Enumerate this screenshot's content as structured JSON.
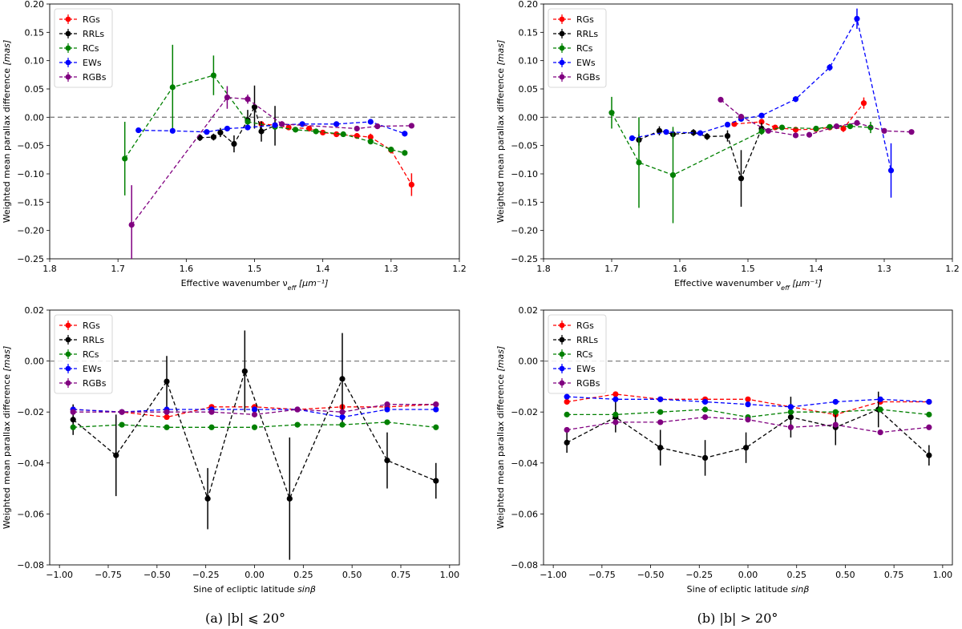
{
  "figure": {
    "captions": [
      "(a) |b| ⩽ 20°",
      "(b) |b| > 20°"
    ]
  },
  "series_meta": [
    {
      "name": "RGs",
      "color": "#ff0000"
    },
    {
      "name": "RRLs",
      "color": "#000000"
    },
    {
      "name": "RCs",
      "color": "#008000"
    },
    {
      "name": "EWs",
      "color": "#0000ff"
    },
    {
      "name": "RGBs",
      "color": "#800080"
    }
  ],
  "chart_data": [
    {
      "type": "line",
      "panel": "a-top",
      "xlabel": "Effective wavenumber ν_eff [μm⁻¹]",
      "ylabel": "Weighted mean parallax difference [mas]",
      "xlim": [
        1.8,
        1.2
      ],
      "ylim": [
        -0.25,
        0.2
      ],
      "xticks": [
        "1.8",
        "1.7",
        "1.6",
        "1.5",
        "1.4",
        "1.3",
        "1.2"
      ],
      "yticks": [
        "0.20",
        "0.15",
        "0.10",
        "0.05",
        "0.00",
        "−0.05",
        "−0.10",
        "−0.15",
        "−0.20",
        "−0.25"
      ],
      "hline": 0,
      "legend_position": "top-left",
      "series": [
        {
          "name": "RGs",
          "x": [
            1.49,
            1.47,
            1.45,
            1.42,
            1.4,
            1.38,
            1.35,
            1.33,
            1.3,
            1.27
          ],
          "y": [
            -0.012,
            -0.014,
            -0.018,
            -0.02,
            -0.027,
            -0.03,
            -0.033,
            -0.035,
            -0.058,
            -0.119
          ],
          "err": [
            0.004,
            0.004,
            0.004,
            0.004,
            0.004,
            0.005,
            0.005,
            0.006,
            0.006,
            0.02
          ]
        },
        {
          "name": "RRLs",
          "x": [
            1.58,
            1.56,
            1.55,
            1.53,
            1.51,
            1.5,
            1.49,
            1.47
          ],
          "y": [
            -0.036,
            -0.035,
            -0.027,
            -0.047,
            -0.005,
            0.018,
            -0.025,
            -0.015
          ],
          "err": [
            0.006,
            0.006,
            0.008,
            0.015,
            0.018,
            0.038,
            0.018,
            0.035
          ]
        },
        {
          "name": "RCs",
          "x": [
            1.69,
            1.62,
            1.56,
            1.51,
            1.47,
            1.44,
            1.41,
            1.37,
            1.33,
            1.3,
            1.28
          ],
          "y": [
            -0.073,
            0.053,
            0.074,
            -0.008,
            -0.017,
            -0.022,
            -0.025,
            -0.03,
            -0.043,
            -0.057,
            -0.063
          ],
          "err": [
            0.065,
            0.075,
            0.035,
            0.006,
            0.005,
            0.004,
            0.004,
            0.004,
            0.004,
            0.004,
            0.005
          ]
        },
        {
          "name": "EWs",
          "x": [
            1.67,
            1.62,
            1.57,
            1.54,
            1.51,
            1.47,
            1.43,
            1.38,
            1.33,
            1.28
          ],
          "y": [
            -0.023,
            -0.024,
            -0.026,
            -0.02,
            -0.018,
            -0.014,
            -0.012,
            -0.012,
            -0.008,
            -0.029
          ],
          "err": [
            0.004,
            0.004,
            0.004,
            0.004,
            0.004,
            0.003,
            0.003,
            0.003,
            0.003,
            0.005
          ]
        },
        {
          "name": "RGBs",
          "x": [
            1.68,
            1.54,
            1.51,
            1.46,
            1.35,
            1.32,
            1.27
          ],
          "y": [
            -0.19,
            0.035,
            0.032,
            -0.012,
            -0.02,
            -0.016,
            -0.015
          ],
          "err": [
            0.07,
            0.02,
            0.008,
            0.005,
            0.004,
            0.004,
            0.004
          ]
        }
      ]
    },
    {
      "type": "line",
      "panel": "b-top",
      "xlabel": "Effective wavenumber ν_eff [μm⁻¹]",
      "ylabel": "Weighted mean parallax difference [mas]",
      "xlim": [
        1.8,
        1.2
      ],
      "ylim": [
        -0.25,
        0.2
      ],
      "xticks": [
        "1.8",
        "1.7",
        "1.6",
        "1.5",
        "1.4",
        "1.3",
        "1.2"
      ],
      "yticks": [
        "0.20",
        "0.15",
        "0.10",
        "0.05",
        "0.00",
        "−0.05",
        "−0.10",
        "−0.15",
        "−0.20",
        "−0.25"
      ],
      "hline": 0,
      "legend_position": "top-left",
      "series": [
        {
          "name": "RGs",
          "x": [
            1.52,
            1.48,
            1.46,
            1.43,
            1.4,
            1.38,
            1.36,
            1.33
          ],
          "y": [
            -0.012,
            -0.008,
            -0.018,
            -0.022,
            -0.021,
            -0.018,
            -0.02,
            0.025
          ],
          "err": [
            0.004,
            0.005,
            0.004,
            0.004,
            0.004,
            0.004,
            0.006,
            0.01
          ]
        },
        {
          "name": "RRLs",
          "x": [
            1.66,
            1.63,
            1.61,
            1.58,
            1.56,
            1.53,
            1.51,
            1.48
          ],
          "y": [
            -0.04,
            -0.024,
            -0.03,
            -0.027,
            -0.034,
            -0.033,
            -0.108,
            -0.02
          ],
          "err": [
            0.01,
            0.008,
            0.008,
            0.006,
            0.006,
            0.01,
            0.05,
            0.01
          ]
        },
        {
          "name": "RCs",
          "x": [
            1.7,
            1.66,
            1.61,
            1.48,
            1.45,
            1.4,
            1.38,
            1.35,
            1.32
          ],
          "y": [
            0.008,
            -0.08,
            -0.102,
            -0.025,
            -0.018,
            -0.02,
            -0.017,
            -0.016,
            -0.018
          ],
          "err": [
            0.028,
            0.08,
            0.085,
            0.006,
            0.004,
            0.004,
            0.004,
            0.004,
            0.01
          ]
        },
        {
          "name": "EWs",
          "x": [
            1.67,
            1.62,
            1.57,
            1.53,
            1.51,
            1.48,
            1.43,
            1.38,
            1.34,
            1.29
          ],
          "y": [
            -0.037,
            -0.026,
            -0.028,
            -0.013,
            -0.003,
            0.003,
            0.032,
            0.088,
            0.174,
            -0.094
          ],
          "err": [
            0.005,
            0.004,
            0.004,
            0.004,
            0.004,
            0.004,
            0.005,
            0.006,
            0.018,
            0.048
          ]
        },
        {
          "name": "RGBs",
          "x": [
            1.54,
            1.51,
            1.47,
            1.43,
            1.41,
            1.37,
            1.34,
            1.3,
            1.26
          ],
          "y": [
            0.031,
            0.001,
            -0.024,
            -0.032,
            -0.031,
            -0.016,
            -0.01,
            -0.024,
            -0.026
          ],
          "err": [
            0.005,
            0.004,
            0.004,
            0.004,
            0.004,
            0.004,
            0.004,
            0.004,
            0.004
          ]
        }
      ]
    },
    {
      "type": "line",
      "panel": "a-bottom",
      "xlabel": "Sine of ecliptic latitude sinβ",
      "ylabel": "Weighted mean parallax difference [mas]",
      "xlim": [
        -1.05,
        1.05
      ],
      "ylim": [
        -0.08,
        0.02
      ],
      "xticks": [
        "−1.00",
        "−0.75",
        "−0.50",
        "−0.25",
        "0.00",
        "0.25",
        "0.50",
        "0.75",
        "1.00"
      ],
      "yticks": [
        "0.02",
        "0.00",
        "−0.02",
        "−0.04",
        "−0.06",
        "−0.08"
      ],
      "hline": 0,
      "legend_position": "top-left",
      "series": [
        {
          "name": "RGs",
          "x": [
            -0.93,
            -0.68,
            -0.45,
            -0.22,
            0.0,
            0.22,
            0.45,
            0.68,
            0.93
          ],
          "y": [
            -0.019,
            -0.02,
            -0.022,
            -0.018,
            -0.018,
            -0.019,
            -0.018,
            -0.018,
            -0.017
          ],
          "err": [
            0.0008,
            0.0008,
            0.0008,
            0.0008,
            0.0008,
            0.0008,
            0.0008,
            0.0008,
            0.0008
          ]
        },
        {
          "name": "RRLs",
          "x": [
            -0.93,
            -0.71,
            -0.45,
            -0.24,
            -0.05,
            0.18,
            0.45,
            0.68,
            0.93
          ],
          "y": [
            -0.023,
            -0.037,
            -0.008,
            -0.054,
            -0.004,
            -0.054,
            -0.007,
            -0.039,
            -0.047
          ],
          "err": [
            0.006,
            0.016,
            0.01,
            0.012,
            0.016,
            0.024,
            0.018,
            0.011,
            0.007
          ]
        },
        {
          "name": "RCs",
          "x": [
            -0.93,
            -0.68,
            -0.45,
            -0.22,
            0.0,
            0.22,
            0.45,
            0.68,
            0.93
          ],
          "y": [
            -0.026,
            -0.025,
            -0.026,
            -0.026,
            -0.026,
            -0.025,
            -0.025,
            -0.024,
            -0.026
          ],
          "err": [
            0.0008,
            0.0008,
            0.0008,
            0.0008,
            0.0008,
            0.0008,
            0.0008,
            0.0008,
            0.0008
          ]
        },
        {
          "name": "EWs",
          "x": [
            -0.93,
            -0.68,
            -0.45,
            -0.22,
            0.0,
            0.22,
            0.45,
            0.68,
            0.93
          ],
          "y": [
            -0.019,
            -0.02,
            -0.019,
            -0.019,
            -0.019,
            -0.019,
            -0.022,
            -0.019,
            -0.019
          ],
          "err": [
            0.0008,
            0.0008,
            0.0008,
            0.0008,
            0.0008,
            0.0008,
            0.0012,
            0.0008,
            0.0008
          ]
        },
        {
          "name": "RGBs",
          "x": [
            -0.93,
            -0.68,
            -0.45,
            -0.22,
            0.0,
            0.22,
            0.45,
            0.68,
            0.93
          ],
          "y": [
            -0.02,
            -0.02,
            -0.02,
            -0.02,
            -0.021,
            -0.019,
            -0.02,
            -0.017,
            -0.017
          ],
          "err": [
            0.0008,
            0.0008,
            0.0008,
            0.0008,
            0.0008,
            0.0008,
            0.0008,
            0.0008,
            0.0008
          ]
        }
      ]
    },
    {
      "type": "line",
      "panel": "b-bottom",
      "xlabel": "Sine of ecliptic latitude sinβ",
      "ylabel": "Weighted mean parallax difference [mas]",
      "xlim": [
        -1.05,
        1.05
      ],
      "ylim": [
        -0.08,
        0.02
      ],
      "xticks": [
        "−1.00",
        "−0.75",
        "−0.50",
        "−0.25",
        "0.00",
        "0.25",
        "0.50",
        "0.75",
        "1.00"
      ],
      "yticks": [
        "0.02",
        "0.00",
        "−0.02",
        "−0.04",
        "−0.06",
        "−0.08"
      ],
      "hline": 0,
      "legend_position": "top-left",
      "series": [
        {
          "name": "RGs",
          "x": [
            -0.93,
            -0.68,
            -0.45,
            -0.22,
            0.0,
            0.22,
            0.45,
            0.68,
            0.93
          ],
          "y": [
            -0.016,
            -0.013,
            -0.015,
            -0.015,
            -0.015,
            -0.018,
            -0.021,
            -0.016,
            -0.016
          ],
          "err": [
            0.0008,
            0.0008,
            0.0008,
            0.0008,
            0.0008,
            0.0008,
            0.0008,
            0.0008,
            0.0008
          ]
        },
        {
          "name": "RRLs",
          "x": [
            -0.93,
            -0.68,
            -0.45,
            -0.22,
            -0.01,
            0.22,
            0.45,
            0.67,
            0.93
          ],
          "y": [
            -0.032,
            -0.022,
            -0.034,
            -0.038,
            -0.034,
            -0.022,
            -0.026,
            -0.019,
            -0.037
          ],
          "err": [
            0.004,
            0.006,
            0.007,
            0.007,
            0.006,
            0.008,
            0.007,
            0.007,
            0.004
          ]
        },
        {
          "name": "RCs",
          "x": [
            -0.93,
            -0.68,
            -0.45,
            -0.22,
            0.0,
            0.22,
            0.45,
            0.68,
            0.93
          ],
          "y": [
            -0.021,
            -0.021,
            -0.02,
            -0.019,
            -0.022,
            -0.02,
            -0.02,
            -0.019,
            -0.021
          ],
          "err": [
            0.0008,
            0.0008,
            0.0008,
            0.0008,
            0.0008,
            0.0008,
            0.0008,
            0.0008,
            0.0008
          ]
        },
        {
          "name": "EWs",
          "x": [
            -0.93,
            -0.68,
            -0.45,
            -0.22,
            0.0,
            0.22,
            0.45,
            0.68,
            0.93
          ],
          "y": [
            -0.014,
            -0.015,
            -0.015,
            -0.016,
            -0.017,
            -0.018,
            -0.016,
            -0.015,
            -0.016
          ],
          "err": [
            0.0008,
            0.0008,
            0.0008,
            0.0008,
            0.0008,
            0.0008,
            0.0008,
            0.0008,
            0.0008
          ]
        },
        {
          "name": "RGBs",
          "x": [
            -0.93,
            -0.68,
            -0.45,
            -0.22,
            0.0,
            0.22,
            0.45,
            0.68,
            0.93
          ],
          "y": [
            -0.027,
            -0.024,
            -0.024,
            -0.022,
            -0.023,
            -0.026,
            -0.025,
            -0.028,
            -0.026
          ],
          "err": [
            0.0008,
            0.0008,
            0.0008,
            0.0008,
            0.0008,
            0.0008,
            0.0008,
            0.0008,
            0.0008
          ]
        }
      ]
    }
  ]
}
